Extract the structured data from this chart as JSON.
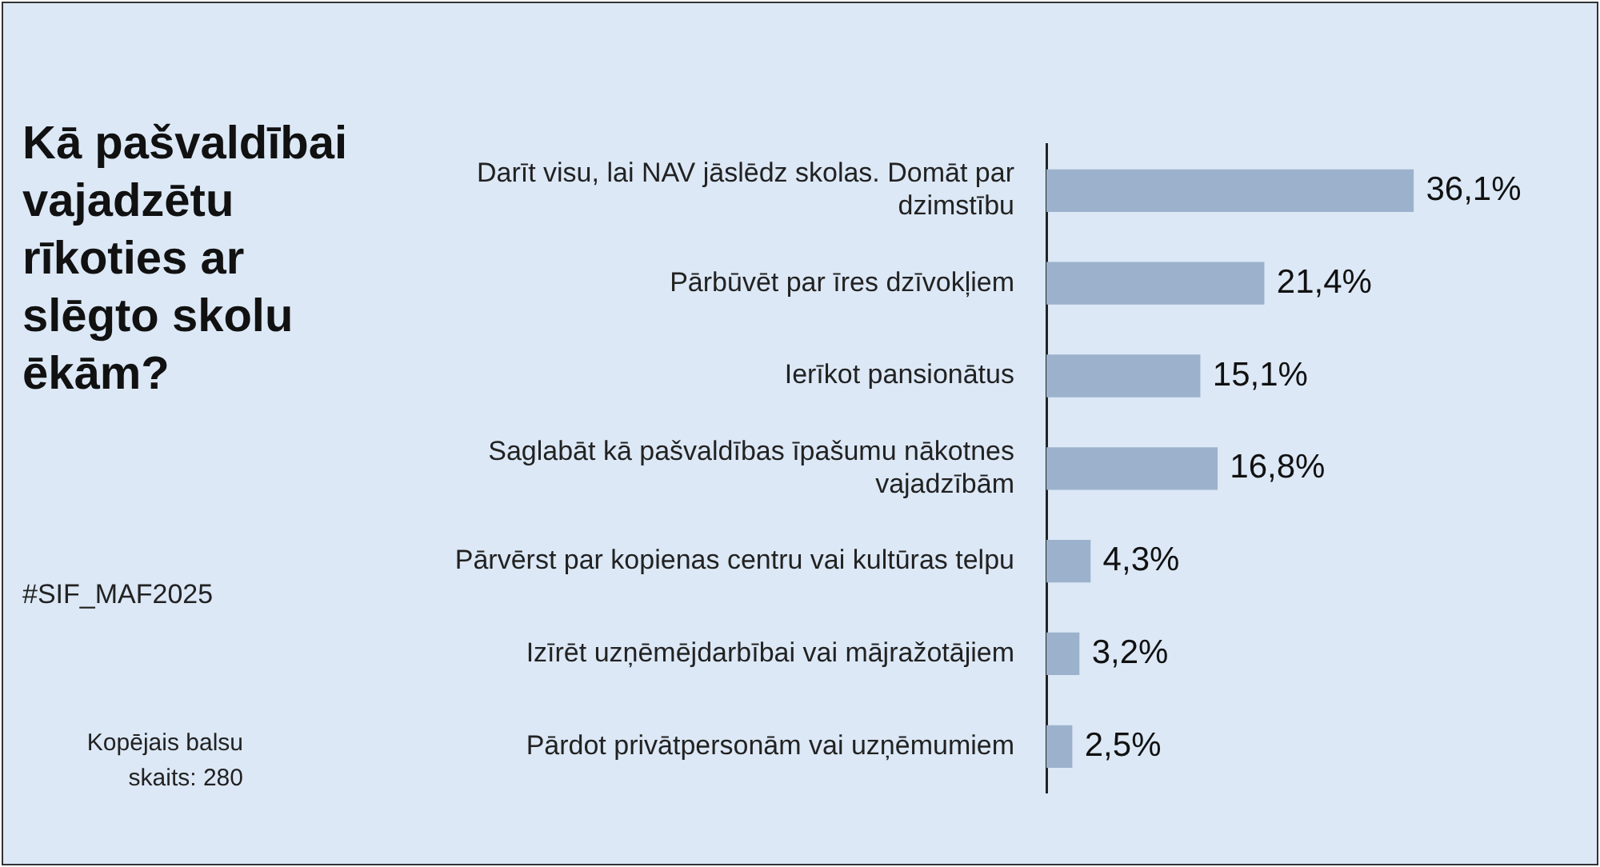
{
  "chart_data": {
    "type": "bar",
    "orientation": "horizontal",
    "title": "Kā pašvaldībai vajadzētu rīkoties ar slēgto skolu ēkām?",
    "annotations": [
      "#SIF_MAF2025",
      "Kopējais balsu skaits: 280"
    ],
    "categories": [
      "Darīt visu, lai NAV jāslēdz skolas. Domāt par dzimstību",
      "Pārbūvēt par īres dzīvokļiem",
      "Ierīkot pansionātus",
      "Saglabāt kā pašvaldības īpašumu nākotnes vajadzībām",
      "Pārvērst par kopienas centru vai kultūras telpu",
      "Izīrēt uzņēmējdarbībai vai mājražotājiem",
      "Pārdot privātpersonām vai uzņēmumiem"
    ],
    "values": [
      36.1,
      21.4,
      15.1,
      16.8,
      4.3,
      3.2,
      2.5
    ],
    "value_labels": [
      "36,1%",
      "21,4%",
      "15,1%",
      "16,8%",
      "4,3%",
      "3,2%",
      "2,5%"
    ],
    "color": "#9cb2cc",
    "legend": false
  }
}
